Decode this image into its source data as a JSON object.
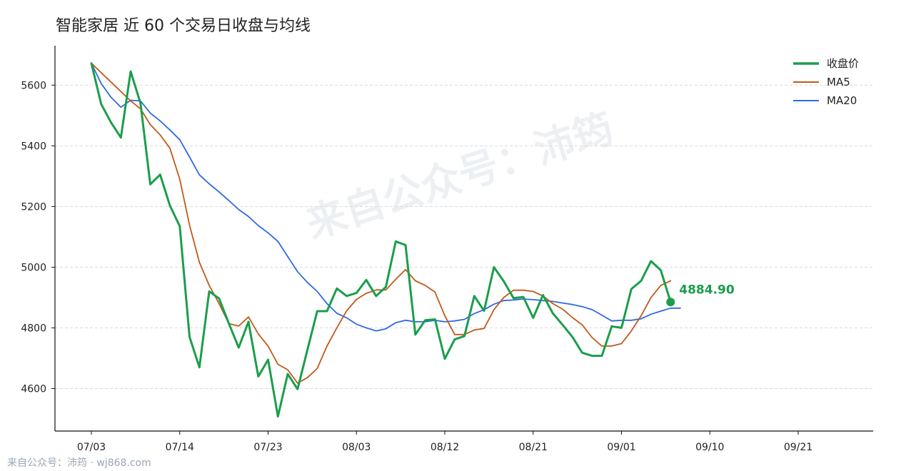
{
  "chart_data": {
    "type": "line",
    "title": "智能家居 近 60 个交易日收盘与均线",
    "xlabel": "",
    "ylabel": "",
    "ylim": [
      4460,
      5730
    ],
    "yticks": [
      4600,
      4800,
      5000,
      5200,
      5400,
      5600
    ],
    "xticks": [
      {
        "i": 0,
        "label": "07/03"
      },
      {
        "i": 9,
        "label": "07/14"
      },
      {
        "i": 18,
        "label": "07/23"
      },
      {
        "i": 27,
        "label": "08/03"
      },
      {
        "i": 36,
        "label": "08/12"
      },
      {
        "i": 45,
        "label": "08/21"
      },
      {
        "i": 54,
        "label": "09/01"
      },
      {
        "i": 63,
        "label": "09/10"
      },
      {
        "i": 72,
        "label": "09/21"
      }
    ],
    "grid": true,
    "legend_position": "top-right",
    "series": [
      {
        "name": "收盘价",
        "color": "#1a9e4b",
        "points": [
          [
            0,
            5672
          ],
          [
            1,
            5537
          ],
          [
            2,
            5477
          ],
          [
            3,
            5427
          ],
          [
            4,
            5645
          ],
          [
            5,
            5540
          ],
          [
            6,
            5273
          ],
          [
            7,
            5305
          ],
          [
            8,
            5203
          ],
          [
            9,
            5135
          ],
          [
            10,
            4770
          ],
          [
            11,
            4670
          ],
          [
            12,
            4920
          ],
          [
            13,
            4897
          ],
          [
            14,
            4815
          ],
          [
            15,
            4735
          ],
          [
            16,
            4820
          ],
          [
            17,
            4640
          ],
          [
            18,
            4695
          ],
          [
            19,
            4508
          ],
          [
            20,
            4648
          ],
          [
            21,
            4598
          ],
          [
            22,
            4727
          ],
          [
            23,
            4855
          ],
          [
            24,
            4855
          ],
          [
            25,
            4930
          ],
          [
            26,
            4905
          ],
          [
            27,
            4915
          ],
          [
            28,
            4958
          ],
          [
            29,
            4905
          ],
          [
            30,
            4935
          ],
          [
            31,
            5085
          ],
          [
            32,
            5073
          ],
          [
            33,
            4778
          ],
          [
            34,
            4825
          ],
          [
            35,
            4828
          ],
          [
            36,
            4698
          ],
          [
            37,
            4762
          ],
          [
            38,
            4773
          ],
          [
            39,
            4905
          ],
          [
            40,
            4856
          ],
          [
            41,
            5000
          ],
          [
            42,
            4954
          ],
          [
            43,
            4898
          ],
          [
            44,
            4902
          ],
          [
            45,
            4833
          ],
          [
            46,
            4908
          ],
          [
            47,
            4848
          ],
          [
            48,
            4810
          ],
          [
            49,
            4770
          ],
          [
            50,
            4718
          ],
          [
            51,
            4708
          ],
          [
            52,
            4708
          ],
          [
            53,
            4805
          ],
          [
            54,
            4800
          ],
          [
            55,
            4928
          ],
          [
            56,
            4955
          ],
          [
            57,
            5020
          ],
          [
            58,
            4990
          ],
          [
            59,
            4885
          ]
        ]
      },
      {
        "name": "MA5",
        "color": "#c0591b",
        "points": [
          [
            0,
            5672
          ],
          [
            4,
            5548
          ],
          [
            5,
            5522
          ],
          [
            6,
            5470
          ],
          [
            7,
            5436
          ],
          [
            8,
            5392
          ],
          [
            9,
            5290
          ],
          [
            10,
            5138
          ],
          [
            11,
            5016
          ],
          [
            12,
            4940
          ],
          [
            13,
            4880
          ],
          [
            14,
            4814
          ],
          [
            15,
            4806
          ],
          [
            16,
            4836
          ],
          [
            17,
            4780
          ],
          [
            18,
            4740
          ],
          [
            19,
            4680
          ],
          [
            20,
            4662
          ],
          [
            21,
            4618
          ],
          [
            22,
            4636
          ],
          [
            23,
            4666
          ],
          [
            24,
            4740
          ],
          [
            25,
            4800
          ],
          [
            26,
            4856
          ],
          [
            27,
            4894
          ],
          [
            28,
            4914
          ],
          [
            29,
            4925
          ],
          [
            30,
            4925
          ],
          [
            31,
            4960
          ],
          [
            32,
            4992
          ],
          [
            33,
            4955
          ],
          [
            34,
            4940
          ],
          [
            35,
            4918
          ],
          [
            36,
            4840
          ],
          [
            37,
            4778
          ],
          [
            38,
            4778
          ],
          [
            39,
            4793
          ],
          [
            40,
            4798
          ],
          [
            41,
            4860
          ],
          [
            42,
            4900
          ],
          [
            43,
            4924
          ],
          [
            44,
            4924
          ],
          [
            45,
            4920
          ],
          [
            46,
            4905
          ],
          [
            47,
            4880
          ],
          [
            48,
            4862
          ],
          [
            49,
            4834
          ],
          [
            50,
            4810
          ],
          [
            51,
            4768
          ],
          [
            52,
            4740
          ],
          [
            53,
            4740
          ],
          [
            54,
            4748
          ],
          [
            55,
            4790
          ],
          [
            56,
            4840
          ],
          [
            57,
            4900
          ],
          [
            58,
            4940
          ],
          [
            59,
            4955
          ]
        ]
      },
      {
        "name": "MA20",
        "color": "#2f69e0",
        "points": [
          [
            0,
            5672
          ],
          [
            1,
            5605
          ],
          [
            2,
            5560
          ],
          [
            3,
            5527
          ],
          [
            4,
            5550
          ],
          [
            5,
            5548
          ],
          [
            6,
            5508
          ],
          [
            7,
            5482
          ],
          [
            8,
            5452
          ],
          [
            9,
            5420
          ],
          [
            10,
            5363
          ],
          [
            11,
            5304
          ],
          [
            12,
            5275
          ],
          [
            13,
            5248
          ],
          [
            14,
            5220
          ],
          [
            15,
            5190
          ],
          [
            16,
            5167
          ],
          [
            17,
            5137
          ],
          [
            18,
            5113
          ],
          [
            19,
            5085
          ],
          [
            20,
            5035
          ],
          [
            21,
            4985
          ],
          [
            22,
            4950
          ],
          [
            23,
            4920
          ],
          [
            24,
            4880
          ],
          [
            25,
            4848
          ],
          [
            26,
            4833
          ],
          [
            27,
            4812
          ],
          [
            28,
            4800
          ],
          [
            29,
            4790
          ],
          [
            30,
            4797
          ],
          [
            31,
            4817
          ],
          [
            32,
            4825
          ],
          [
            33,
            4820
          ],
          [
            34,
            4820
          ],
          [
            35,
            4825
          ],
          [
            36,
            4820
          ],
          [
            37,
            4823
          ],
          [
            38,
            4828
          ],
          [
            39,
            4847
          ],
          [
            40,
            4860
          ],
          [
            41,
            4878
          ],
          [
            42,
            4890
          ],
          [
            43,
            4892
          ],
          [
            44,
            4895
          ],
          [
            45,
            4893
          ],
          [
            46,
            4890
          ],
          [
            47,
            4887
          ],
          [
            48,
            4882
          ],
          [
            49,
            4877
          ],
          [
            50,
            4870
          ],
          [
            51,
            4860
          ],
          [
            52,
            4842
          ],
          [
            53,
            4823
          ],
          [
            54,
            4825
          ],
          [
            55,
            4825
          ],
          [
            56,
            4830
          ],
          [
            57,
            4845
          ],
          [
            58,
            4855
          ],
          [
            59,
            4865
          ],
          [
            60,
            4865
          ]
        ]
      }
    ],
    "last_value_label": "4884.90"
  },
  "watermark": "来自公众号：沛筠",
  "footer": "来自公众号：沛筠 · wj868.com"
}
